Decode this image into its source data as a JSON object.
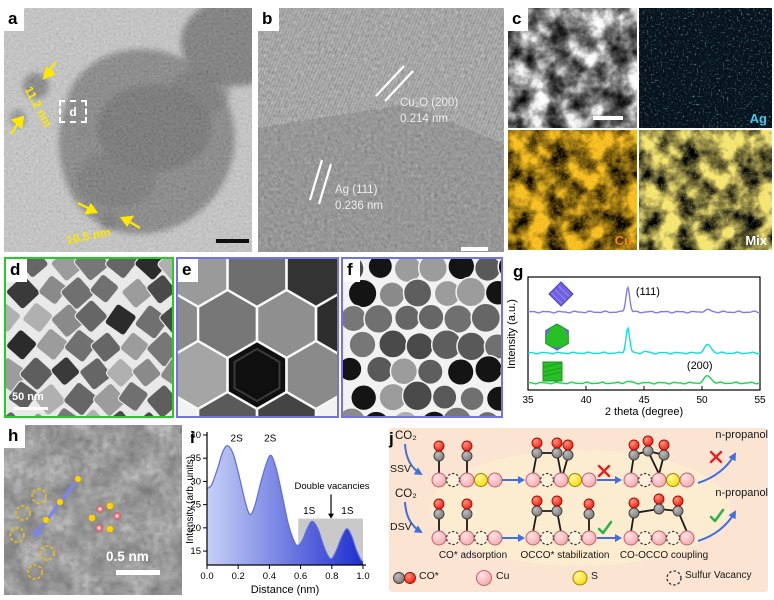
{
  "panel_labels": {
    "a": "a",
    "b": "b",
    "c": "c",
    "d": "d",
    "e": "e",
    "f": "f",
    "g": "g",
    "h": "h",
    "i": "i",
    "j": "j"
  },
  "panel_a": {
    "measure1": "11.2 nm",
    "measure2": "10.5 nm",
    "inset_label": "d"
  },
  "panel_b": {
    "phase1_name": "Cu₂O (200)",
    "phase1_d": "0.214 nm",
    "phase2_name": "Ag (111)",
    "phase2_d": "0.236 nm"
  },
  "panel_c": {
    "map_ag": "Ag",
    "map_cu": "Cu",
    "map_mix": "Mix",
    "ag_color": "#3fc9ec",
    "cu_color": "#f28a10",
    "mix_color": "#ffffff"
  },
  "panel_d": {
    "scale_label": "50 nm",
    "border_color": "#25cc25"
  },
  "panel_e": {
    "border_color": "#7173e6"
  },
  "panel_f": {
    "border_color": "#7173e6"
  },
  "panel_h": {
    "scale_label": "0.5 nm"
  },
  "chart_data": [
    {
      "id": "xrd",
      "type": "line",
      "title": "",
      "xlabel": "2 theta (degree)",
      "ylabel": "Intensity (a.u.)",
      "xlim": [
        35,
        55
      ],
      "xticks": [
        35,
        40,
        45,
        50,
        55
      ],
      "grid": false,
      "legend_position": "icons-left",
      "series": [
        {
          "name": "octahedra",
          "color": "#837af0",
          "baseline": 55,
          "peaks": [
            {
              "x": 43.6,
              "h": 25,
              "w": 0.16
            },
            {
              "x": 50.5,
              "h": 2,
              "w": 0.3
            }
          ]
        },
        {
          "name": "mixed",
          "color": "#0de0da",
          "baseline": 96,
          "peaks": [
            {
              "x": 43.6,
              "h": 25,
              "w": 0.16
            },
            {
              "x": 45.1,
              "h": 1.5,
              "w": 0.2
            },
            {
              "x": 50.5,
              "h": 8,
              "w": 0.3
            }
          ]
        },
        {
          "name": "cubes",
          "color": "#15d84a",
          "baseline": 126,
          "peaks": [
            {
              "x": 43.6,
              "h": 1.5,
              "w": 0.25
            },
            {
              "x": 50.5,
              "h": 7,
              "w": 0.3
            }
          ]
        }
      ],
      "annotations": [
        {
          "text": "(111)",
          "x": 44.3,
          "y": 38
        },
        {
          "text": "(200)",
          "x": 48.7,
          "y": 112
        }
      ]
    },
    {
      "id": "intensity-profile",
      "type": "area",
      "xlabel": "Distance (nm)",
      "ylabel": "Intensity (arb. units)",
      "xlim": [
        0,
        1
      ],
      "ylim": [
        12,
        40
      ],
      "xticks": [
        0,
        0.2,
        0.4,
        0.6,
        0.8,
        1.0
      ],
      "yticks": [
        15,
        20,
        25,
        30,
        35,
        40
      ],
      "points": [
        [
          0,
          28.5
        ],
        [
          0.03,
          29.3
        ],
        [
          0.07,
          33
        ],
        [
          0.1,
          36.3
        ],
        [
          0.13,
          37.7
        ],
        [
          0.165,
          36.2
        ],
        [
          0.2,
          32
        ],
        [
          0.245,
          25.6
        ],
        [
          0.275,
          22.9
        ],
        [
          0.305,
          24.6
        ],
        [
          0.345,
          29.8
        ],
        [
          0.38,
          33.8
        ],
        [
          0.41,
          35.6
        ],
        [
          0.445,
          32.6
        ],
        [
          0.485,
          26.5
        ],
        [
          0.52,
          21
        ],
        [
          0.55,
          17.8
        ],
        [
          0.578,
          16.2
        ],
        [
          0.61,
          17.2
        ],
        [
          0.645,
          20
        ],
        [
          0.675,
          21.4
        ],
        [
          0.71,
          19.8
        ],
        [
          0.745,
          16.4
        ],
        [
          0.775,
          14
        ],
        [
          0.8,
          13.4
        ],
        [
          0.83,
          15.2
        ],
        [
          0.862,
          17.9
        ],
        [
          0.895,
          19.8
        ],
        [
          0.925,
          18.4
        ],
        [
          0.958,
          15.2
        ],
        [
          0.985,
          13.2
        ],
        [
          1,
          12.7
        ]
      ],
      "peak_labels": [
        {
          "text": "2S",
          "x": 0.19,
          "y": 38.6
        },
        {
          "text": "2S",
          "x": 0.405,
          "y": 38.6
        },
        {
          "text": "1S",
          "x": 0.655,
          "y": 23.0
        },
        {
          "text": "1S",
          "x": 0.9,
          "y": 23.0
        }
      ],
      "region_box": {
        "x0": 0.585,
        "x1": 1.0,
        "y_top": 22,
        "label": "Double vacancies",
        "arrow_x": 0.795,
        "color": "#c9c9c9"
      },
      "fill_gradient": [
        "#c7d0f6",
        "#1e2ecf"
      ],
      "line_color": "#5c6be0"
    }
  ],
  "panel_j": {
    "co2_label": "CO₂",
    "row1_label": "SSV",
    "row2_label": "DSV",
    "product_label": "n-propanol",
    "stage_labels": [
      "CO* adsorption",
      "OCCO* stabilization",
      "CO-OCCO coupling"
    ],
    "legend": [
      {
        "label": "CO*"
      },
      {
        "label": "Cu"
      },
      {
        "label": "S"
      },
      {
        "label": "Sulfur Vacancy"
      }
    ],
    "colors": {
      "bg": "#fbe5d2",
      "cu": "#f2a7ad",
      "cu_edge": "#c4626e",
      "s": "#f2dc00",
      "s_edge": "#a08800",
      "c": "#787878",
      "c_edge": "#3c3c3c",
      "o": "#ee1a0c",
      "o_edge": "#9c0d00",
      "bond": "#1a1a1a",
      "arrow": "#3f6fe0",
      "cross": "#e82020",
      "check": "#2db24a"
    }
  }
}
